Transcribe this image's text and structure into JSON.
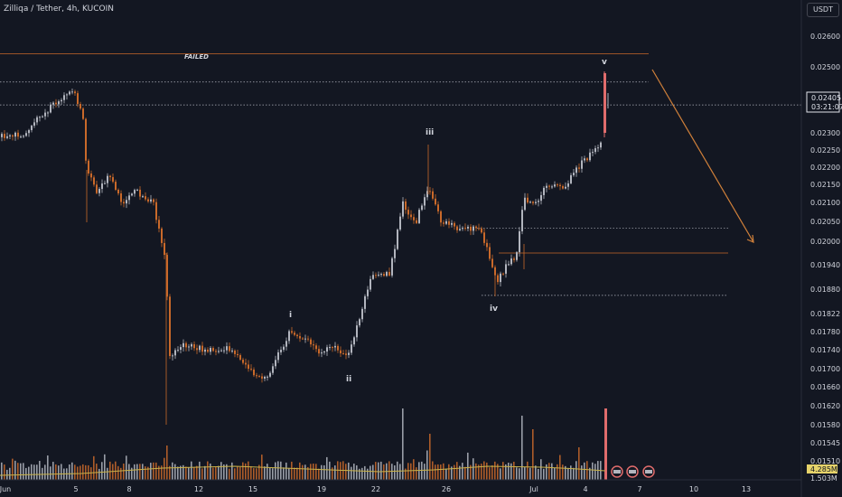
{
  "header": {
    "title": "Zilliqa / Tether, 4h, KUCOIN",
    "currency_label": "USDT"
  },
  "colors": {
    "background": "#131722",
    "up_candle": "#b2b5be",
    "down_candle": "#c9692a",
    "current_candle": "#e06c6c",
    "grid_line": "#b2b5be",
    "level_line": "#c9692a",
    "arrow": "#d0803a",
    "volume_ma": "#c8b24a"
  },
  "price_axis": {
    "ticks": [
      "0.02600",
      "0.02500",
      "0.02405",
      "0.02300",
      "0.02250",
      "0.02200",
      "0.02150",
      "0.02100",
      "0.02050",
      "0.02000",
      "0.01940",
      "0.01880",
      "0.01822",
      "0.01780",
      "0.01740",
      "0.01700",
      "0.01660",
      "0.01620",
      "0.01580",
      "0.01545",
      "0.01510"
    ],
    "last_price": "0.02405",
    "countdown": "03:21:07",
    "volume_label": "4.285M",
    "volume_ma_label": "1.503M"
  },
  "time_axis": {
    "ticks": [
      "Jun",
      "5",
      "8",
      "12",
      "15",
      "19",
      "22",
      "26",
      "Jul",
      "4",
      "7",
      "10",
      "13"
    ]
  },
  "annotations": {
    "failed": "FAILED",
    "wave_i": "i",
    "wave_ii": "ii",
    "wave_iii": "iii",
    "wave_iv": "iv",
    "wave_v": "v"
  },
  "chart_data": {
    "type": "candlestick",
    "symbol": "Zilliqa / Tether",
    "interval": "4h",
    "exchange": "KUCOIN",
    "last_price": 0.02405,
    "levels": {
      "failed_resistance": 0.0255,
      "upper_dotted": 0.0247,
      "last_dotted": 0.02405,
      "support_1": 0.02055,
      "orange_level": 0.01985,
      "iv_low": 0.01865
    },
    "path_key_prices": [
      [
        "Jun",
        0.0229
      ],
      [
        "5",
        0.0242
      ],
      [
        "8",
        0.0208
      ],
      [
        "12",
        0.0173
      ],
      [
        "15",
        0.0168
      ],
      [
        "19",
        0.0175
      ],
      [
        "22",
        0.0189
      ],
      [
        "26",
        0.0205
      ],
      [
        "Jul",
        0.0198
      ],
      [
        "4",
        0.0225
      ]
    ],
    "waves": [
      {
        "label": "i",
        "price": 0.0181
      },
      {
        "label": "ii",
        "price": 0.0171
      },
      {
        "label": "iii",
        "price": 0.0229
      },
      {
        "label": "iv",
        "price": 0.01865
      },
      {
        "label": "v",
        "price": 0.0249
      }
    ],
    "projection": {
      "from": 0.0249,
      "to": 0.02,
      "direction": "down"
    }
  }
}
